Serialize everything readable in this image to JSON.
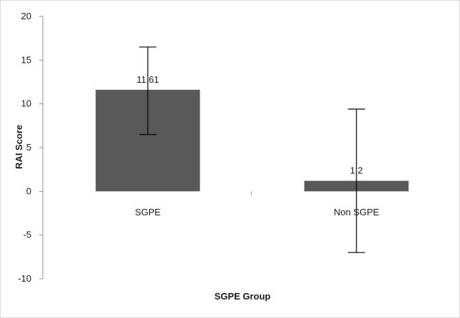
{
  "chart_data": {
    "type": "bar",
    "title": "",
    "xlabel": "SGPE Group",
    "ylabel": "RAI Score",
    "categories": [
      "SGPE",
      "Non SGPE"
    ],
    "series": [
      {
        "values": [
          11.61,
          1.2
        ],
        "error_upper": [
          16.5,
          9.4
        ],
        "error_lower": [
          6.5,
          -7.0
        ],
        "color": "#595959"
      }
    ],
    "data_labels": [
      "11.61",
      "1.2"
    ],
    "ylim": [
      -10,
      20
    ],
    "yticks": [
      -10,
      -5,
      0,
      5,
      10,
      15,
      20
    ],
    "ytick_labels": [
      "-10",
      "-5",
      "0",
      "5",
      "10",
      "15",
      "20"
    ],
    "grid": false,
    "legend": "none"
  }
}
